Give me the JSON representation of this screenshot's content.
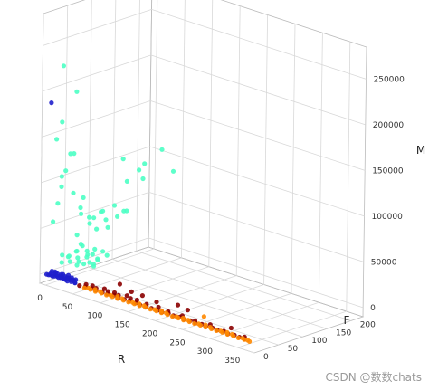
{
  "chart_data": {
    "type": "scatter",
    "projection": "3d",
    "title": "",
    "xlabel": "R",
    "ylabel": "F",
    "zlabel": "M",
    "xlim": [
      -10,
      380
    ],
    "ylim": [
      0,
      225
    ],
    "zlim": [
      -10000,
      285000
    ],
    "x_ticks": [
      "0",
      "50",
      "100",
      "150",
      "200",
      "250",
      "300",
      "350"
    ],
    "y_ticks": [
      "0",
      "50",
      "100",
      "150",
      "200"
    ],
    "z_ticks": [
      "0",
      "50000",
      "100000",
      "150000",
      "200000",
      "250000"
    ],
    "grid": true,
    "pane_color": "#f2f2f2",
    "series": [
      {
        "color": "#1f1fcc",
        "points": [
          [
            2,
            0,
            2000
          ],
          [
            4,
            2,
            1500
          ],
          [
            6,
            4,
            3000
          ],
          [
            8,
            1,
            2500
          ],
          [
            10,
            3,
            1200
          ],
          [
            12,
            5,
            3500
          ],
          [
            14,
            2,
            2200
          ],
          [
            16,
            6,
            1800
          ],
          [
            18,
            3,
            2600
          ],
          [
            20,
            4,
            1400
          ],
          [
            22,
            7,
            3200
          ],
          [
            24,
            5,
            2000
          ],
          [
            26,
            2,
            2800
          ],
          [
            28,
            6,
            1600
          ],
          [
            30,
            4,
            2400
          ],
          [
            32,
            8,
            3000
          ],
          [
            34,
            3,
            1900
          ],
          [
            36,
            5,
            2700
          ],
          [
            38,
            2,
            1300
          ],
          [
            40,
            6,
            2500
          ],
          [
            42,
            4,
            3100
          ],
          [
            44,
            3,
            1700
          ],
          [
            46,
            7,
            2300
          ],
          [
            48,
            5,
            2900
          ],
          [
            50,
            4,
            1500
          ],
          [
            52,
            2,
            2100
          ],
          [
            3,
            10,
            4000
          ],
          [
            7,
            12,
            3600
          ],
          [
            11,
            9,
            4200
          ],
          [
            15,
            8,
            3800
          ],
          [
            19,
            11,
            3400
          ],
          [
            23,
            10,
            4400
          ],
          [
            27,
            9,
            3000
          ],
          [
            31,
            12,
            4600
          ],
          [
            35,
            8,
            3200
          ],
          [
            39,
            10,
            3900
          ],
          [
            43,
            7,
            2800
          ],
          [
            47,
            9,
            3500
          ],
          [
            5,
            2,
            190000
          ]
        ]
      },
      {
        "color": "#4dffc4",
        "points": [
          [
            3,
            30,
            10000
          ],
          [
            6,
            40,
            15000
          ],
          [
            8,
            25,
            20000
          ],
          [
            10,
            55,
            12000
          ],
          [
            12,
            35,
            18000
          ],
          [
            14,
            60,
            25000
          ],
          [
            16,
            45,
            22000
          ],
          [
            18,
            30,
            14000
          ],
          [
            20,
            50,
            30000
          ],
          [
            22,
            40,
            9000
          ],
          [
            24,
            70,
            16000
          ],
          [
            26,
            35,
            26000
          ],
          [
            28,
            55,
            19000
          ],
          [
            30,
            45,
            11000
          ],
          [
            32,
            65,
            24000
          ],
          [
            34,
            30,
            17000
          ],
          [
            36,
            50,
            13000
          ],
          [
            38,
            75,
            21000
          ],
          [
            40,
            40,
            28000
          ],
          [
            42,
            60,
            15000
          ],
          [
            44,
            35,
            23000
          ],
          [
            46,
            55,
            18000
          ],
          [
            48,
            45,
            12000
          ],
          [
            50,
            70,
            20000
          ],
          [
            52,
            40,
            16000
          ],
          [
            4,
            60,
            35000
          ],
          [
            9,
            80,
            45000
          ],
          [
            13,
            90,
            38000
          ],
          [
            17,
            70,
            55000
          ],
          [
            21,
            100,
            48000
          ],
          [
            25,
            85,
            60000
          ],
          [
            29,
            95,
            42000
          ],
          [
            33,
            110,
            52000
          ],
          [
            37,
            75,
            65000
          ],
          [
            41,
            120,
            58000
          ],
          [
            45,
            90,
            70000
          ],
          [
            49,
            105,
            62000
          ],
          [
            15,
            150,
            80000
          ],
          [
            20,
            180,
            95000
          ],
          [
            25,
            130,
            110000
          ],
          [
            35,
            160,
            85000
          ],
          [
            45,
            140,
            100000
          ],
          [
            55,
            200,
            90000
          ],
          [
            60,
            170,
            120000
          ],
          [
            8,
            5,
            60000
          ],
          [
            12,
            10,
            80000
          ],
          [
            20,
            8,
            100000
          ],
          [
            30,
            5,
            120000
          ],
          [
            40,
            10,
            140000
          ],
          [
            50,
            15,
            75000
          ],
          [
            15,
            15,
            230000
          ],
          [
            18,
            10,
            170000
          ],
          [
            45,
            25,
            90000
          ],
          [
            25,
            20,
            135000
          ],
          [
            60,
            30,
            70000
          ],
          [
            22,
            6,
            112000
          ],
          [
            38,
            12,
            96000
          ],
          [
            55,
            8,
            84000
          ],
          [
            10,
            8,
            150000
          ],
          [
            48,
            5,
            210000
          ]
        ]
      },
      {
        "color": "#8b0000",
        "points": [
          [
            60,
            2,
            800
          ],
          [
            70,
            3,
            1200
          ],
          [
            80,
            5,
            900
          ],
          [
            90,
            2,
            1500
          ],
          [
            100,
            4,
            700
          ],
          [
            110,
            3,
            1100
          ],
          [
            120,
            6,
            1300
          ],
          [
            130,
            2,
            600
          ],
          [
            140,
            4,
            1000
          ],
          [
            150,
            3,
            1400
          ],
          [
            160,
            5,
            800
          ],
          [
            170,
            2,
            1200
          ],
          [
            180,
            4,
            900
          ],
          [
            190,
            3,
            1100
          ],
          [
            200,
            5,
            700
          ],
          [
            210,
            2,
            1000
          ],
          [
            220,
            4,
            1300
          ],
          [
            230,
            3,
            800
          ],
          [
            240,
            5,
            1100
          ],
          [
            250,
            2,
            900
          ],
          [
            260,
            4,
            1200
          ],
          [
            270,
            3,
            700
          ],
          [
            280,
            5,
            1000
          ],
          [
            290,
            2,
            800
          ],
          [
            300,
            4,
            1100
          ],
          [
            310,
            3,
            900
          ],
          [
            320,
            5,
            1200
          ],
          [
            330,
            2,
            700
          ],
          [
            340,
            4,
            1000
          ],
          [
            350,
            3,
            800
          ],
          [
            360,
            2,
            900
          ],
          [
            65,
            10,
            1500
          ],
          [
            75,
            12,
            1800
          ],
          [
            85,
            8,
            1600
          ],
          [
            95,
            14,
            2000
          ],
          [
            105,
            10,
            1700
          ],
          [
            115,
            12,
            1900
          ],
          [
            125,
            9,
            1500
          ],
          [
            135,
            15,
            2100
          ],
          [
            145,
            11,
            1800
          ],
          [
            155,
            13,
            1600
          ],
          [
            175,
            10,
            1400
          ],
          [
            195,
            12,
            1700
          ],
          [
            215,
            9,
            1500
          ],
          [
            240,
            10,
            1600
          ],
          [
            265,
            8,
            1400
          ],
          [
            290,
            11,
            1500
          ],
          [
            320,
            20,
            2000
          ],
          [
            355,
            8,
            1200
          ],
          [
            150,
            30,
            2500
          ],
          [
            180,
            25,
            2200
          ],
          [
            210,
            35,
            3000
          ],
          [
            100,
            40,
            3500
          ],
          [
            130,
            30,
            2800
          ],
          [
            248,
            12,
            9000
          ]
        ]
      },
      {
        "color": "#ff8800",
        "points": [
          [
            70,
            1,
            300
          ],
          [
            80,
            2,
            400
          ],
          [
            90,
            1,
            500
          ],
          [
            100,
            2,
            350
          ],
          [
            110,
            1,
            450
          ],
          [
            120,
            2,
            380
          ],
          [
            130,
            1,
            420
          ],
          [
            140,
            2,
            360
          ],
          [
            150,
            1,
            480
          ],
          [
            160,
            2,
            330
          ],
          [
            170,
            1,
            440
          ],
          [
            180,
            2,
            370
          ],
          [
            190,
            1,
            460
          ],
          [
            200,
            2,
            340
          ],
          [
            210,
            1,
            430
          ],
          [
            220,
            2,
            390
          ],
          [
            230,
            1,
            470
          ],
          [
            240,
            2,
            350
          ],
          [
            250,
            1,
            410
          ],
          [
            260,
            2,
            380
          ],
          [
            270,
            1,
            450
          ],
          [
            280,
            2,
            360
          ],
          [
            290,
            1,
            420
          ],
          [
            300,
            2,
            340
          ],
          [
            310,
            1,
            460
          ],
          [
            320,
            2,
            370
          ],
          [
            330,
            1,
            400
          ],
          [
            340,
            2,
            350
          ],
          [
            350,
            1,
            430
          ],
          [
            360,
            2,
            380
          ],
          [
            370,
            1,
            300
          ],
          [
            75,
            4,
            500
          ],
          [
            95,
            5,
            600
          ],
          [
            115,
            4,
            550
          ],
          [
            135,
            5,
            650
          ],
          [
            155,
            4,
            520
          ],
          [
            175,
            5,
            580
          ],
          [
            195,
            4,
            540
          ],
          [
            215,
            5,
            620
          ],
          [
            235,
            4,
            510
          ],
          [
            255,
            5,
            590
          ],
          [
            275,
            4,
            530
          ],
          [
            295,
            5,
            610
          ],
          [
            315,
            4,
            500
          ],
          [
            335,
            5,
            570
          ],
          [
            355,
            4,
            520
          ],
          [
            365,
            3,
            480
          ],
          [
            85,
            6,
            700
          ],
          [
            125,
            7,
            750
          ],
          [
            165,
            6,
            680
          ],
          [
            205,
            7,
            720
          ],
          [
            245,
            6,
            690
          ],
          [
            285,
            7,
            740
          ],
          [
            325,
            6,
            700
          ],
          [
            262,
            30,
            1500
          ]
        ]
      }
    ],
    "watermark": "CSDN @数数chats"
  }
}
